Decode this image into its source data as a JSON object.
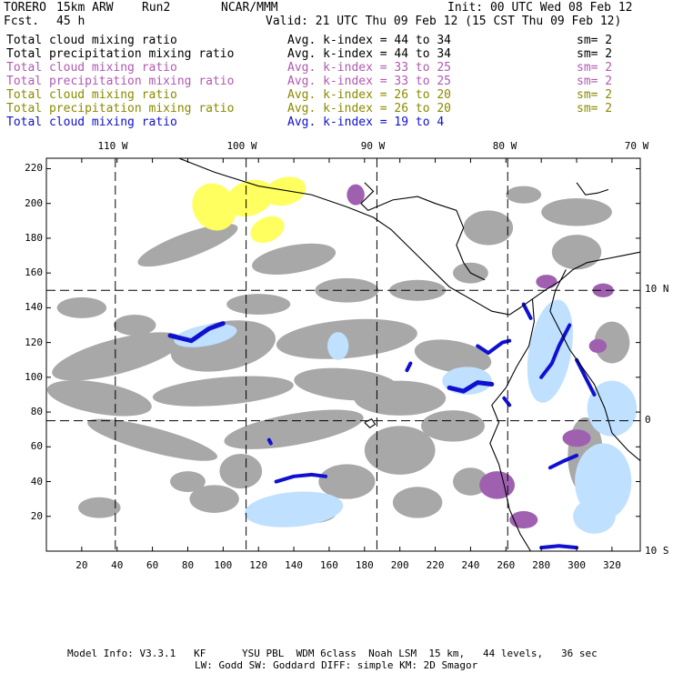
{
  "header": {
    "model": "TORERO",
    "resolution": "15km ARW",
    "run": "Run2",
    "org": "NCAR/MMM",
    "fcst_label": "Fcst.",
    "fcst_value": "45 h",
    "init": "Init: 00 UTC Wed 08 Feb 12",
    "valid": "Valid: 21 UTC Thu 09 Feb 12 (15 CST Thu 09 Feb 12)"
  },
  "legend": [
    {
      "field": "Total cloud mixing ratio",
      "index": "Avg. k-index = 44 to 34",
      "sm": "sm= 2",
      "color": "#000000"
    },
    {
      "field": "Total precipitation mixing ratio",
      "index": "Avg. k-index = 44 to 34",
      "sm": "sm= 2",
      "color": "#000000"
    },
    {
      "field": "Total cloud mixing ratio",
      "index": "Avg. k-index = 33 to 25",
      "sm": "sm= 2",
      "color": "#b05ab0"
    },
    {
      "field": "Total precipitation mixing ratio",
      "index": "Avg. k-index = 33 to 25",
      "sm": "sm= 2",
      "color": "#b05ab0"
    },
    {
      "field": "Total cloud mixing ratio",
      "index": "Avg. k-index = 26 to 20",
      "sm": "sm= 2",
      "color": "#8a8a00"
    },
    {
      "field": "Total precipitation mixing ratio",
      "index": "Avg. k-index = 26 to 20",
      "sm": "sm= 2",
      "color": "#8a8a00"
    },
    {
      "field": "Total cloud mixing ratio",
      "index": "Avg. k-index = 19 to 4",
      "sm": "",
      "color": "#1010d0"
    }
  ],
  "axes": {
    "top_labels": [
      "110 W",
      "100 W",
      "90 W",
      "80 W",
      "70 W"
    ],
    "right_labels": [
      "10 N",
      "0",
      "10 S"
    ],
    "y_ticks": [
      220,
      200,
      180,
      160,
      140,
      120,
      100,
      80,
      60,
      40,
      20
    ],
    "x_ticks": [
      20,
      40,
      60,
      80,
      100,
      120,
      140,
      160,
      180,
      200,
      220,
      240,
      260,
      280,
      300,
      320
    ]
  },
  "colors": {
    "cloud_gray": "#a8a8a8",
    "purple": "#a060b0",
    "yellow": "#ffff60",
    "blue_dark": "#1010d0",
    "blue_mid": "#5070e0",
    "blue_light": "#c0e0ff"
  },
  "footer": {
    "line1": "Model Info: V3.3.1   KF      YSU PBL  WDM 6class  Noah LSM  15 km,   44 levels,   36 sec",
    "line2": "LW: Godd SW: Goddard DIFF: simple KM: 2D Smagor"
  }
}
